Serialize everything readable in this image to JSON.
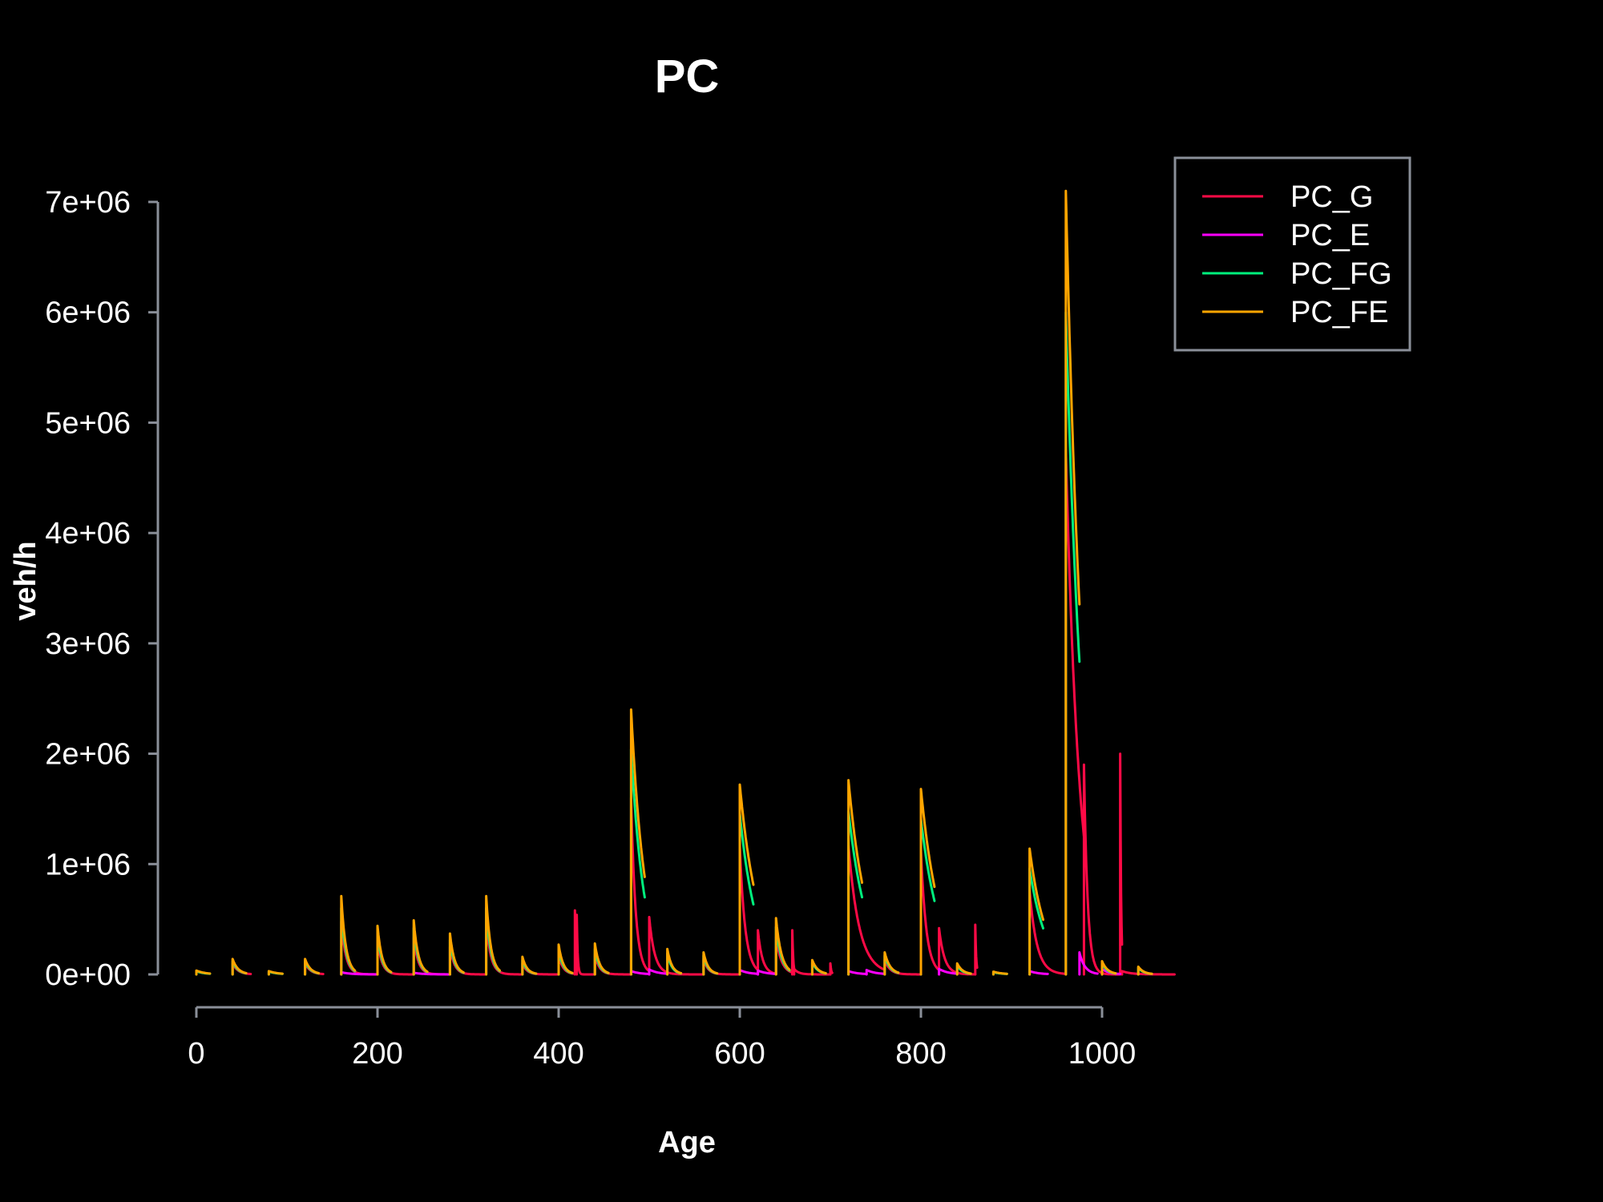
{
  "chart_data": {
    "type": "line",
    "title": "PC",
    "xlabel": "Age",
    "ylabel": "veh/h",
    "xlim": [
      0,
      1080
    ],
    "ylim": [
      0,
      7000000
    ],
    "x_ticks": [
      0,
      200,
      400,
      600,
      800,
      1000
    ],
    "x_tick_labels": [
      "0",
      "200",
      "400",
      "600",
      "800",
      "1000"
    ],
    "y_ticks": [
      0,
      1000000,
      2000000,
      3000000,
      4000000,
      5000000,
      6000000,
      7000000
    ],
    "y_tick_labels": [
      "0e+00",
      "1e+06",
      "2e+06",
      "3e+06",
      "4e+06",
      "5e+06",
      "6e+06",
      "7e+06"
    ],
    "grid": false,
    "legend_position": "top-right",
    "background": "#000000",
    "text_color": "#ffffff",
    "series": [
      {
        "name": "PC_G",
        "color": "#ff0a46",
        "segments": [
          {
            "start": 40,
            "peak": 100000,
            "tau": 6,
            "len": 20
          },
          {
            "start": 120,
            "peak": 100000,
            "tau": 6,
            "len": 20
          },
          {
            "start": 160,
            "peak": 480000,
            "tau": 5,
            "len": 40
          },
          {
            "start": 200,
            "peak": 300000,
            "tau": 5,
            "len": 40
          },
          {
            "start": 240,
            "peak": 330000,
            "tau": 5,
            "len": 40
          },
          {
            "start": 280,
            "peak": 250000,
            "tau": 5,
            "len": 40
          },
          {
            "start": 320,
            "peak": 480000,
            "tau": 5,
            "len": 40
          },
          {
            "start": 360,
            "peak": 100000,
            "tau": 5,
            "len": 40
          },
          {
            "start": 400,
            "peak": 170000,
            "tau": 5,
            "len": 18
          },
          {
            "start": 418,
            "peak": 580000,
            "tau": 1,
            "len": 2
          },
          {
            "start": 420,
            "peak": 540000,
            "tau": 1,
            "len": 20
          },
          {
            "start": 440,
            "peak": 180000,
            "tau": 5,
            "len": 40
          },
          {
            "start": 480,
            "peak": 1600000,
            "tau": 5,
            "len": 20
          },
          {
            "start": 500,
            "peak": 520000,
            "tau": 6,
            "len": 60
          },
          {
            "start": 560,
            "peak": 140000,
            "tau": 5,
            "len": 40
          },
          {
            "start": 600,
            "peak": 1160000,
            "tau": 6,
            "len": 20
          },
          {
            "start": 620,
            "peak": 400000,
            "tau": 5,
            "len": 20
          },
          {
            "start": 640,
            "peak": 340000,
            "tau": 6,
            "len": 18
          },
          {
            "start": 658,
            "peak": 400000,
            "tau": 1,
            "len": 2
          },
          {
            "start": 660,
            "peak": 50000,
            "tau": 5,
            "len": 40
          },
          {
            "start": 700,
            "peak": 100000,
            "tau": 1,
            "len": 2
          },
          {
            "start": 720,
            "peak": 1170000,
            "tau": 12,
            "len": 40
          },
          {
            "start": 760,
            "peak": 130000,
            "tau": 6,
            "len": 40
          },
          {
            "start": 800,
            "peak": 1120000,
            "tau": 6,
            "len": 20
          },
          {
            "start": 820,
            "peak": 420000,
            "tau": 6,
            "len": 40
          },
          {
            "start": 860,
            "peak": 450000,
            "tau": 1,
            "len": 2
          },
          {
            "start": 920,
            "peak": 760000,
            "tau": 8,
            "len": 40
          },
          {
            "start": 960,
            "peak": 4750000,
            "tau": 15,
            "len": 20
          },
          {
            "start": 980,
            "peak": 1900000,
            "tau": 4,
            "len": 40
          },
          {
            "start": 1020,
            "peak": 2000000,
            "tau": 1,
            "len": 2
          },
          {
            "start": 1022,
            "peak": 30000,
            "tau": 10,
            "len": 58
          }
        ]
      },
      {
        "name": "PC_E",
        "color": "#ff00ff",
        "segments": [
          {
            "start": 160,
            "peak": 20000,
            "tau": 10,
            "len": 40
          },
          {
            "start": 240,
            "peak": 15000,
            "tau": 10,
            "len": 40
          },
          {
            "start": 480,
            "peak": 30000,
            "tau": 10,
            "len": 20
          },
          {
            "start": 500,
            "peak": 45000,
            "tau": 10,
            "len": 20
          },
          {
            "start": 600,
            "peak": 40000,
            "tau": 10,
            "len": 20
          },
          {
            "start": 620,
            "peak": 35000,
            "tau": 10,
            "len": 20
          },
          {
            "start": 720,
            "peak": 30000,
            "tau": 10,
            "len": 20
          },
          {
            "start": 740,
            "peak": 40000,
            "tau": 10,
            "len": 20
          },
          {
            "start": 820,
            "peak": 50000,
            "tau": 10,
            "len": 20
          },
          {
            "start": 920,
            "peak": 30000,
            "tau": 10,
            "len": 20
          },
          {
            "start": 975,
            "peak": 200000,
            "tau": 6,
            "len": 20
          },
          {
            "start": 1000,
            "peak": 50000,
            "tau": 8,
            "len": 20
          }
        ]
      },
      {
        "name": "PC_FG",
        "color": "#00f07d",
        "segments": [
          {
            "start": 0,
            "peak": 28000,
            "tau": 10,
            "len": 15
          },
          {
            "start": 40,
            "peak": 120000,
            "tau": 6,
            "len": 15
          },
          {
            "start": 80,
            "peak": 25000,
            "tau": 10,
            "len": 15
          },
          {
            "start": 120,
            "peak": 120000,
            "tau": 6,
            "len": 15
          },
          {
            "start": 160,
            "peak": 600000,
            "tau": 5,
            "len": 15
          },
          {
            "start": 200,
            "peak": 370000,
            "tau": 5,
            "len": 15
          },
          {
            "start": 240,
            "peak": 420000,
            "tau": 5,
            "len": 15
          },
          {
            "start": 280,
            "peak": 310000,
            "tau": 5,
            "len": 15
          },
          {
            "start": 320,
            "peak": 600000,
            "tau": 5,
            "len": 15
          },
          {
            "start": 360,
            "peak": 130000,
            "tau": 5,
            "len": 15
          },
          {
            "start": 400,
            "peak": 220000,
            "tau": 5,
            "len": 15
          },
          {
            "start": 440,
            "peak": 230000,
            "tau": 5,
            "len": 15
          },
          {
            "start": 480,
            "peak": 2040000,
            "tau": 14,
            "len": 15
          },
          {
            "start": 520,
            "peak": 190000,
            "tau": 5,
            "len": 15
          },
          {
            "start": 560,
            "peak": 170000,
            "tau": 5,
            "len": 15
          },
          {
            "start": 600,
            "peak": 1460000,
            "tau": 18,
            "len": 15
          },
          {
            "start": 640,
            "peak": 430000,
            "tau": 6,
            "len": 15
          },
          {
            "start": 680,
            "peak": 110000,
            "tau": 6,
            "len": 15
          },
          {
            "start": 720,
            "peak": 1480000,
            "tau": 20,
            "len": 15
          },
          {
            "start": 760,
            "peak": 170000,
            "tau": 6,
            "len": 15
          },
          {
            "start": 800,
            "peak": 1410000,
            "tau": 20,
            "len": 15
          },
          {
            "start": 840,
            "peak": 80000,
            "tau": 6,
            "len": 15
          },
          {
            "start": 880,
            "peak": 20000,
            "tau": 10,
            "len": 15
          },
          {
            "start": 920,
            "peak": 960000,
            "tau": 18,
            "len": 15
          },
          {
            "start": 960,
            "peak": 6000000,
            "tau": 20,
            "len": 15
          },
          {
            "start": 1000,
            "peak": 100000,
            "tau": 6,
            "len": 15
          },
          {
            "start": 1040,
            "peak": 60000,
            "tau": 6,
            "len": 15
          }
        ]
      },
      {
        "name": "PC_FE",
        "color": "#ffa500",
        "segments": [
          {
            "start": 0,
            "peak": 35000,
            "tau": 10,
            "len": 15
          },
          {
            "start": 40,
            "peak": 140000,
            "tau": 6,
            "len": 15
          },
          {
            "start": 80,
            "peak": 30000,
            "tau": 10,
            "len": 15
          },
          {
            "start": 120,
            "peak": 140000,
            "tau": 6,
            "len": 15
          },
          {
            "start": 160,
            "peak": 710000,
            "tau": 5,
            "len": 15
          },
          {
            "start": 200,
            "peak": 440000,
            "tau": 5,
            "len": 15
          },
          {
            "start": 240,
            "peak": 490000,
            "tau": 5,
            "len": 15
          },
          {
            "start": 280,
            "peak": 370000,
            "tau": 5,
            "len": 15
          },
          {
            "start": 320,
            "peak": 710000,
            "tau": 5,
            "len": 15
          },
          {
            "start": 360,
            "peak": 160000,
            "tau": 5,
            "len": 15
          },
          {
            "start": 400,
            "peak": 270000,
            "tau": 5,
            "len": 15
          },
          {
            "start": 440,
            "peak": 280000,
            "tau": 5,
            "len": 15
          },
          {
            "start": 480,
            "peak": 2400000,
            "tau": 15,
            "len": 15
          },
          {
            "start": 520,
            "peak": 230000,
            "tau": 5,
            "len": 15
          },
          {
            "start": 560,
            "peak": 200000,
            "tau": 5,
            "len": 15
          },
          {
            "start": 600,
            "peak": 1720000,
            "tau": 20,
            "len": 15
          },
          {
            "start": 640,
            "peak": 510000,
            "tau": 6,
            "len": 15
          },
          {
            "start": 680,
            "peak": 130000,
            "tau": 6,
            "len": 15
          },
          {
            "start": 720,
            "peak": 1760000,
            "tau": 20,
            "len": 15
          },
          {
            "start": 760,
            "peak": 200000,
            "tau": 6,
            "len": 15
          },
          {
            "start": 800,
            "peak": 1680000,
            "tau": 20,
            "len": 15
          },
          {
            "start": 840,
            "peak": 100000,
            "tau": 6,
            "len": 15
          },
          {
            "start": 880,
            "peak": 25000,
            "tau": 10,
            "len": 15
          },
          {
            "start": 920,
            "peak": 1140000,
            "tau": 18,
            "len": 15
          },
          {
            "start": 960,
            "peak": 7100000,
            "tau": 20,
            "len": 15
          },
          {
            "start": 1000,
            "peak": 120000,
            "tau": 6,
            "len": 15
          },
          {
            "start": 1040,
            "peak": 70000,
            "tau": 6,
            "len": 15
          }
        ]
      }
    ]
  }
}
